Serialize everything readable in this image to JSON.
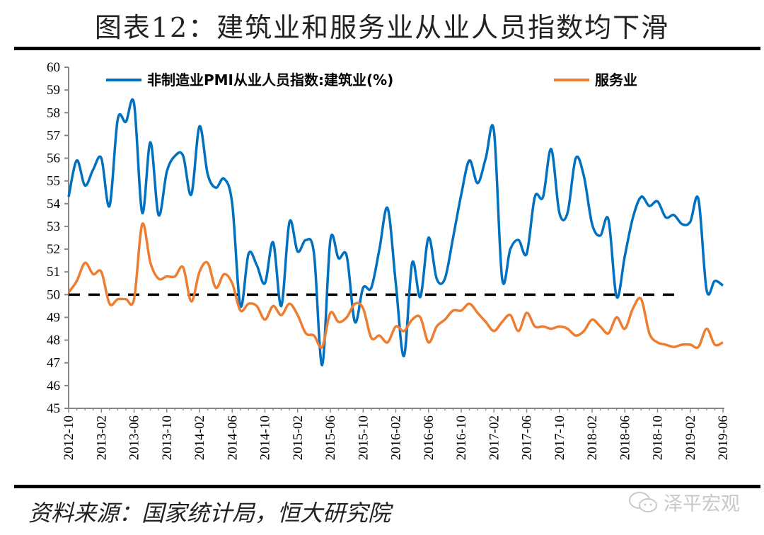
{
  "title": "图表12：建筑业和服务业从业人员指数均下滑",
  "source": "资料来源：国家统计局，恒大研究院",
  "watermark": "泽平宏观",
  "colors": {
    "construction": "#0070c0",
    "services": "#ed7d31",
    "reference": "#000000"
  },
  "chart_data": {
    "type": "line",
    "title": "图表12：建筑业和服务业从业人员指数均下滑",
    "xlabel": "",
    "ylabel": "",
    "ylim": [
      45,
      60
    ],
    "yticks": [
      "45",
      "46",
      "47",
      "48",
      "49",
      "50",
      "51",
      "52",
      "53",
      "54",
      "55",
      "56",
      "57",
      "58",
      "59",
      "60"
    ],
    "x_start": "2012-10",
    "x_end": "2019-06",
    "xtick_labels": [
      "2012-10",
      "2013-02",
      "2013-06",
      "2013-10",
      "2014-02",
      "2014-06",
      "2014-10",
      "2015-02",
      "2015-06",
      "2015-10",
      "2016-02",
      "2016-06",
      "2016-10",
      "2017-02",
      "2017-06",
      "2017-10",
      "2018-02",
      "2018-06",
      "2018-10",
      "2019-02",
      "2019-06"
    ],
    "grid": false,
    "legend_position": "top",
    "reference_line": {
      "value": 50,
      "style": "dashed",
      "end_index": 75
    },
    "series": [
      {
        "name": "非制造业PMI从业人员指数:建筑业(%)",
        "color": "#0070c0",
        "values": [
          54.3,
          55.9,
          54.8,
          55.5,
          56.0,
          53.9,
          57.7,
          57.6,
          58.4,
          53.6,
          56.7,
          53.5,
          55.4,
          56.1,
          56.1,
          54.4,
          57.4,
          55.3,
          54.7,
          55.1,
          54.0,
          49.5,
          51.8,
          51.3,
          50.5,
          52.3,
          49.5,
          53.2,
          51.9,
          52.4,
          51.8,
          46.9,
          52.4,
          51.6,
          51.7,
          48.8,
          50.3,
          50.3,
          52.0,
          53.8,
          50.5,
          47.3,
          51.4,
          49.9,
          52.5,
          50.7,
          50.7,
          52.5,
          54.4,
          55.9,
          54.9,
          56.0,
          57.2,
          50.7,
          52.0,
          52.4,
          51.8,
          54.3,
          54.3,
          56.4,
          53.6,
          53.6,
          56.0,
          55.2,
          53.1,
          52.6,
          53.3,
          49.9,
          51.7,
          53.4,
          54.3,
          53.9,
          54.1,
          53.4,
          53.5,
          53.1,
          53.2,
          54.2,
          50.2,
          50.6,
          50.4
        ]
      },
      {
        "name": "服务业",
        "color": "#ed7d31",
        "values": [
          50.1,
          50.6,
          51.4,
          50.9,
          51.0,
          49.6,
          49.8,
          49.8,
          49.8,
          53.1,
          51.4,
          50.7,
          50.8,
          50.8,
          51.2,
          49.7,
          51.0,
          51.4,
          50.3,
          50.9,
          50.5,
          49.3,
          49.6,
          49.5,
          48.9,
          49.5,
          49.1,
          49.6,
          49.1,
          48.3,
          48.2,
          47.7,
          49.2,
          48.8,
          49.0,
          49.6,
          49.4,
          48.1,
          48.2,
          47.9,
          48.6,
          48.4,
          48.9,
          49.0,
          47.9,
          48.6,
          48.9,
          49.3,
          49.3,
          49.6,
          49.2,
          48.8,
          48.4,
          48.8,
          49.1,
          48.4,
          49.2,
          48.6,
          48.6,
          48.5,
          48.6,
          48.5,
          48.2,
          48.4,
          48.9,
          48.6,
          48.3,
          49.0,
          48.5,
          49.4,
          49.8,
          48.3,
          47.9,
          47.8,
          47.7,
          47.8,
          47.8,
          47.7,
          48.5,
          47.8,
          47.9
        ]
      }
    ]
  }
}
